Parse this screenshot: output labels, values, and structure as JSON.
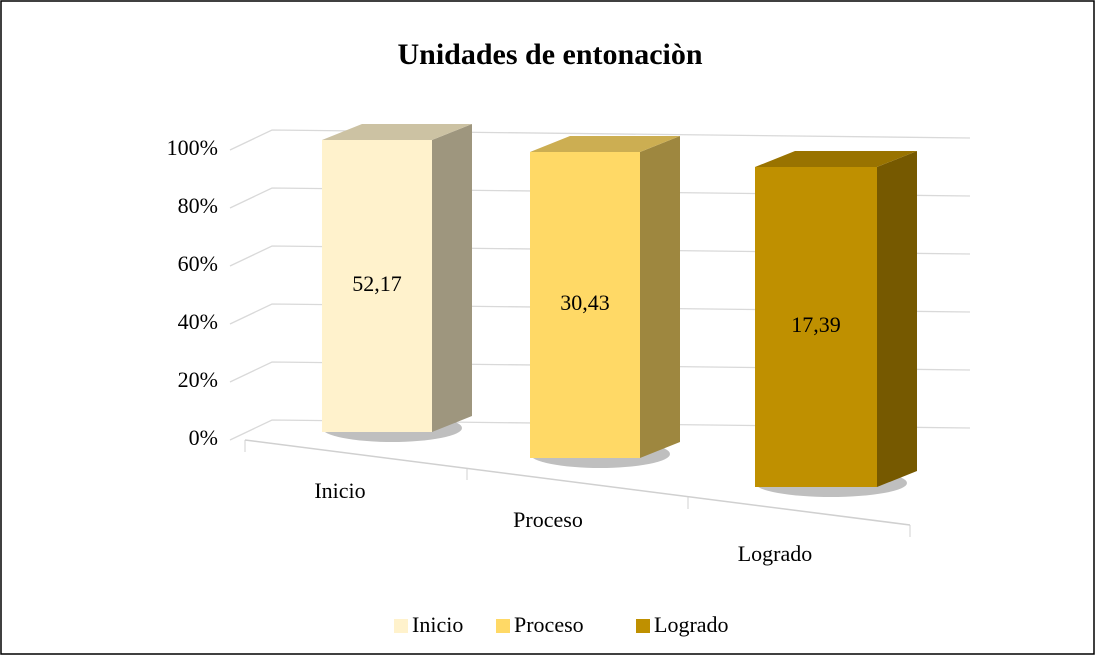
{
  "chart_data": {
    "type": "bar",
    "stacked": "percent",
    "title": "Unidades de entonaciòn",
    "categories": [
      "Inicio",
      "Proceso",
      "Logrado"
    ],
    "series": [
      {
        "name": "Inicio",
        "color": "#FFF2CC",
        "values": [
          52.17,
          null,
          null
        ],
        "value_labels": [
          "52,17",
          null,
          null
        ]
      },
      {
        "name": "Proceso",
        "color": "#FFD966",
        "values": [
          null,
          30.43,
          null
        ],
        "value_labels": [
          null,
          "30,43",
          null
        ]
      },
      {
        "name": "Logrado",
        "color": "#BF9000",
        "values": [
          null,
          null,
          17.39
        ],
        "value_labels": [
          null,
          null,
          "17,39"
        ]
      }
    ],
    "ylim": [
      0,
      100
    ],
    "yticks": [
      {
        "value": 0,
        "label": "0%"
      },
      {
        "value": 20,
        "label": "20%"
      },
      {
        "value": 40,
        "label": "40%"
      },
      {
        "value": 60,
        "label": "60%"
      },
      {
        "value": 80,
        "label": "80%"
      },
      {
        "value": 100,
        "label": "100%"
      }
    ],
    "grid": true,
    "legend": "bottom"
  }
}
